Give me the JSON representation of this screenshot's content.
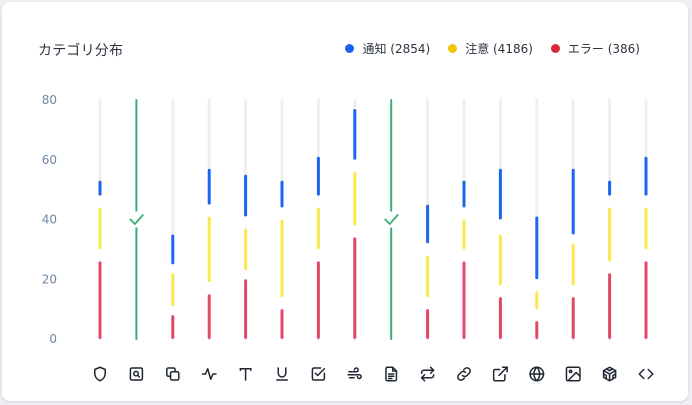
{
  "title": "カテゴリ分布",
  "legend": [
    {
      "label": "通知 (2854)",
      "color": "#1a62f0"
    },
    {
      "label": "注意 (4186)",
      "color": "#f5c400"
    },
    {
      "label": "エラー (386)",
      "color": "#d8293b"
    }
  ],
  "colors": {
    "track": "#efefef",
    "notice": "#1a66ef",
    "warning": "#f9e84e",
    "error": "#e24868",
    "highlight": "#3aae72"
  },
  "chart_data": {
    "type": "bar",
    "ylim": [
      0,
      80
    ],
    "yticks": [
      0,
      20,
      40,
      60,
      80
    ],
    "series_names": [
      "通知",
      "注意",
      "エラー"
    ],
    "categories": [
      {
        "icon": "shield-icon",
        "segments": {
          "error": [
            0,
            26
          ],
          "warning": [
            30,
            44
          ],
          "notice": [
            48,
            53
          ]
        }
      },
      {
        "icon": "search-doc-icon",
        "highlight": true
      },
      {
        "icon": "copy-icon",
        "segments": {
          "error": [
            0,
            8
          ],
          "warning": [
            11,
            22
          ],
          "notice": [
            25,
            35
          ]
        }
      },
      {
        "icon": "activity-icon",
        "segments": {
          "error": [
            0,
            15
          ],
          "warning": [
            19,
            41
          ],
          "notice": [
            45,
            57
          ]
        }
      },
      {
        "icon": "text-type-icon",
        "segments": {
          "error": [
            0,
            20
          ],
          "warning": [
            23,
            37
          ],
          "notice": [
            41,
            55
          ]
        }
      },
      {
        "icon": "underline-icon",
        "segments": {
          "error": [
            0,
            10
          ],
          "warning": [
            14,
            40
          ],
          "notice": [
            44,
            53
          ]
        }
      },
      {
        "icon": "checkbox-icon",
        "segments": {
          "error": [
            0,
            26
          ],
          "warning": [
            30,
            44
          ],
          "notice": [
            48,
            61
          ]
        }
      },
      {
        "icon": "wind-icon",
        "segments": {
          "error": [
            0,
            34
          ],
          "warning": [
            38,
            56
          ],
          "notice": [
            60,
            77
          ]
        }
      },
      {
        "icon": "file-text-icon",
        "highlight": true
      },
      {
        "icon": "repeat-icon",
        "segments": {
          "error": [
            0,
            10
          ],
          "warning": [
            14,
            28
          ],
          "notice": [
            32,
            45
          ]
        }
      },
      {
        "icon": "link-icon",
        "segments": {
          "error": [
            0,
            26
          ],
          "warning": [
            30,
            40
          ],
          "notice": [
            44,
            53
          ]
        }
      },
      {
        "icon": "external-link-icon",
        "segments": {
          "error": [
            0,
            14
          ],
          "warning": [
            18,
            35
          ],
          "notice": [
            40,
            57
          ]
        }
      },
      {
        "icon": "globe-icon",
        "segments": {
          "error": [
            0,
            6
          ],
          "warning": [
            10,
            16
          ],
          "notice": [
            20,
            41
          ]
        }
      },
      {
        "icon": "image-icon",
        "segments": {
          "error": [
            0,
            14
          ],
          "warning": [
            18,
            32
          ],
          "notice": [
            35,
            57
          ]
        }
      },
      {
        "icon": "codesandbox-icon",
        "segments": {
          "error": [
            0,
            22
          ],
          "warning": [
            26,
            44
          ],
          "notice": [
            48,
            53
          ]
        }
      },
      {
        "icon": "code-icon",
        "segments": {
          "error": [
            0,
            26
          ],
          "warning": [
            30,
            44
          ],
          "notice": [
            48,
            61
          ]
        }
      }
    ]
  }
}
